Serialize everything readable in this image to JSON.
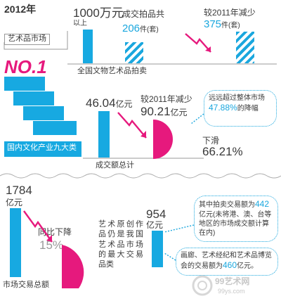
{
  "year": "2012年",
  "badge_label": "艺术品市场",
  "rank": "NO.1",
  "nine_industries": "国内文化产业九大类",
  "auction_section": {
    "lots_over": "1000万元",
    "lots_over_unit": "以上",
    "sold_label": "成交拍品共",
    "sold_value": "206",
    "sold_unit": "件(套)",
    "decrease_label": "较2011年减少",
    "decrease_value": "375",
    "decrease_unit": "件(套)",
    "caption": "全国文物艺术品拍卖"
  },
  "turnover_section": {
    "value": "46.04",
    "unit": "亿元",
    "decrease_label": "较2011年减少",
    "decrease_value": "90.21",
    "decrease_unit": "亿元",
    "callout_line1": "远远超过整体市场",
    "callout_value": "47.88%",
    "callout_suffix": "的降幅",
    "drop_label": "下滑",
    "drop_value": "66.21%",
    "caption": "成交额总计"
  },
  "market_section": {
    "total_value": "1784",
    "total_unit": "亿元",
    "yoy_label": "同比下降",
    "yoy_value": "15%",
    "caption": "市场交易总额",
    "art_text": "艺术原创作品仍是我国艺术品市场的最大交易品类",
    "art_value": "954",
    "art_unit": "亿元",
    "callout1_pre": "其中拍卖交易额为",
    "callout1_value": "442",
    "callout1_post": "亿元(未将港、澳、台等地区的市场成交额计算在内)",
    "callout2_pre": "画廊、艺术经纪和艺术品博览会的交易额为",
    "callout2_value": "460",
    "callout2_post": "亿元。"
  },
  "chart_data": {
    "type": "bar",
    "title": "",
    "charts": [
      {
        "name": "auction_lots",
        "categories": [
          "1000万元以上成交拍品",
          "较2011年减少"
        ],
        "values": [
          206,
          375
        ],
        "unit": "件(套)"
      },
      {
        "name": "auction_turnover",
        "categories": [
          "成交额总计",
          "较2011年减少"
        ],
        "values": [
          46.04,
          90.21
        ],
        "unit": "亿元",
        "drop_percent": 66.21
      },
      {
        "name": "market_total",
        "categories": [
          "市场交易总额",
          "艺术原创作品"
        ],
        "values": [
          1784,
          954
        ],
        "unit": "亿元",
        "drop_percent": 15
      }
    ]
  },
  "colors": {
    "accent": "#1aa7de",
    "magenta": "#e6197d"
  },
  "watermark": {
    "site": "99艺术网",
    "domain": "99ys.com"
  }
}
